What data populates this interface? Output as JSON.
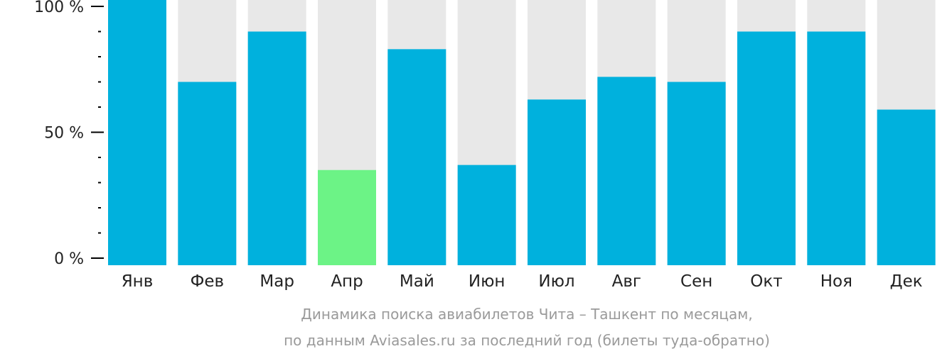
{
  "chart_data": {
    "type": "bar",
    "categories": [
      "Янв",
      "Фев",
      "Мар",
      "Апр",
      "Май",
      "Июн",
      "Июл",
      "Авг",
      "Сен",
      "Окт",
      "Ноя",
      "Дек"
    ],
    "values": [
      100,
      70,
      90,
      35,
      83,
      37,
      63,
      72,
      70,
      90,
      90,
      59
    ],
    "ylim": [
      0,
      100
    ],
    "yticks": [
      {
        "value": 0,
        "label": "0 %"
      },
      {
        "value": 50,
        "label": "50 %"
      },
      {
        "value": 100,
        "label": "100 %"
      }
    ],
    "highlight_category": "Апр",
    "colors": {
      "bar": "#00b1dd",
      "highlight": "#6cf386",
      "background_bar": "#e8e8e8",
      "axis": "#000000"
    },
    "caption": [
      "Динамика поиска авиабилетов Чита – Ташкент по месяцам,",
      "по данным Aviasales.ru за последний год (билеты туда-обратно)"
    ]
  }
}
